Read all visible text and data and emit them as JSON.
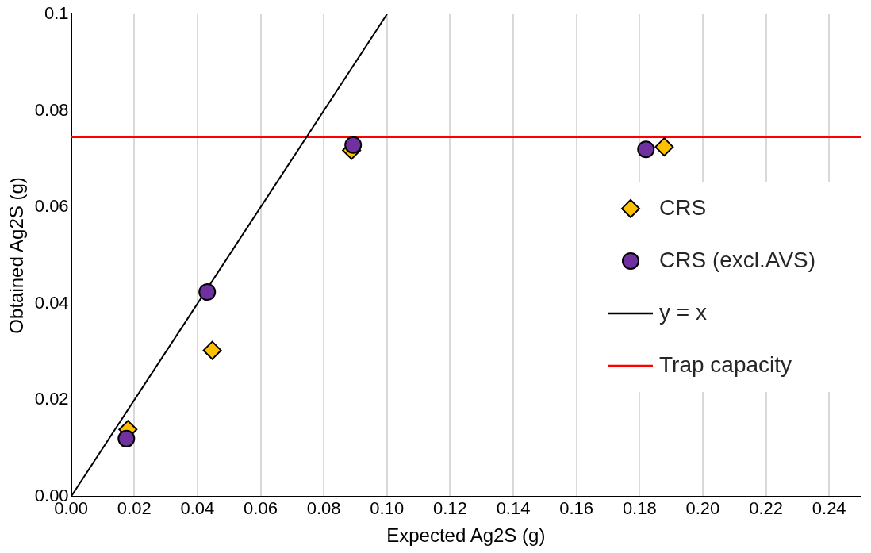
{
  "chart_data": {
    "type": "scatter",
    "xlabel": "Expected Ag2S (g)",
    "ylabel": "Obtained Ag2S (g)",
    "xlim": [
      0,
      0.25
    ],
    "ylim": [
      0,
      0.1
    ],
    "xticks": [
      {
        "value": 0,
        "label": "0.00"
      },
      {
        "value": 0.02,
        "label": "0.02"
      },
      {
        "value": 0.04,
        "label": "0.04"
      },
      {
        "value": 0.06,
        "label": "0.06"
      },
      {
        "value": 0.08,
        "label": "0.08"
      },
      {
        "value": 0.1,
        "label": "0.10"
      },
      {
        "value": 0.12,
        "label": "0.12"
      },
      {
        "value": 0.14,
        "label": "0.14"
      },
      {
        "value": 0.16,
        "label": "0.16"
      },
      {
        "value": 0.18,
        "label": "0.18"
      },
      {
        "value": 0.2,
        "label": "0.20"
      },
      {
        "value": 0.22,
        "label": "0.22"
      },
      {
        "value": 0.24,
        "label": "0.24"
      }
    ],
    "yticks": [
      {
        "value": 0,
        "label": "0.00"
      },
      {
        "value": 0.02,
        "label": "0.02"
      },
      {
        "value": 0.04,
        "label": "0.04"
      },
      {
        "value": 0.06,
        "label": "0.06"
      },
      {
        "value": 0.08,
        "label": "0.08"
      },
      0.1
    ],
    "grid": "x",
    "legend": "right",
    "series": [
      {
        "name": "CRS",
        "type": "scatter",
        "marker": "diamond",
        "color": "#ffc000",
        "x": [
          0.018,
          0.0447,
          0.0888,
          0.1878
        ],
        "values": [
          0.0139,
          0.0303,
          0.0718,
          0.0725
        ]
      },
      {
        "name": "CRS (excl.AVS)",
        "type": "scatter",
        "marker": "circle",
        "color": "#7030a0",
        "x": [
          0.0175,
          0.0431,
          0.0893,
          0.182
        ],
        "values": [
          0.012,
          0.0424,
          0.0729,
          0.072
        ]
      },
      {
        "name": "y = x",
        "type": "line",
        "marker": "none",
        "line_style": "solid",
        "color": "#000000",
        "x": [
          0,
          0.1
        ],
        "values": [
          0,
          0.1
        ]
      },
      {
        "name": "Trap capacity",
        "type": "line",
        "marker": "none",
        "line_style": "solid",
        "color": "#ff0000",
        "x": [
          0,
          0.25
        ],
        "values": [
          0.0745,
          0.0745
        ]
      }
    ]
  }
}
